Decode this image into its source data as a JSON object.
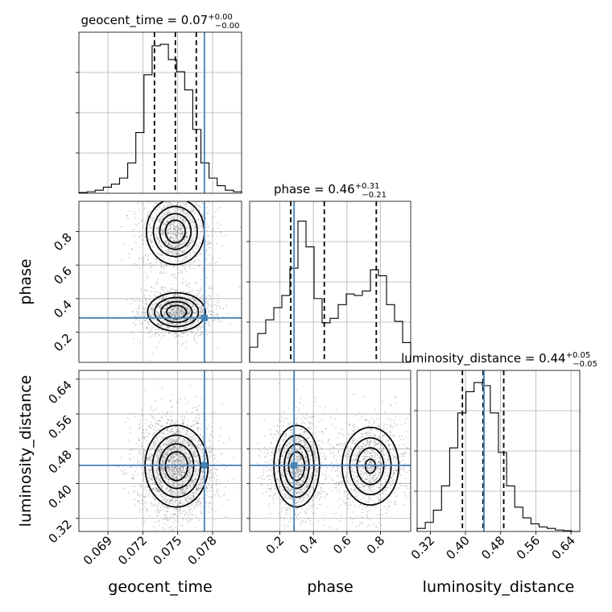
{
  "chart_data": {
    "type": "corner",
    "grid": true,
    "colors": {
      "truth": "#4682b4",
      "hist": "#000000",
      "quantile": "#000000",
      "density": "#000000"
    },
    "parameters": [
      {
        "key": "geocent_time",
        "label": "geocent_time",
        "title": {
          "main": "geocent_time = 0.07",
          "sup": "+0.00",
          "sub": "−0.00"
        },
        "range": [
          0.0665,
          0.0805
        ],
        "ticks": [
          0.069,
          0.072,
          0.075,
          0.078
        ],
        "tick_labels": [
          "0.069",
          "0.072",
          "0.075",
          "0.078"
        ],
        "truth": 0.0773,
        "quantiles": [
          0.073,
          0.0748,
          0.0766
        ],
        "histogram": [
          0.005,
          0.01,
          0.02,
          0.04,
          0.06,
          0.1,
          0.2,
          0.4,
          0.78,
          0.97,
          0.98,
          0.88,
          0.8,
          0.68,
          0.42,
          0.2,
          0.1,
          0.05,
          0.02,
          0.01
        ]
      },
      {
        "key": "phase",
        "label": "phase",
        "title": {
          "main": "phase = 0.46",
          "sup": "+0.31",
          "sub": "−0.21"
        },
        "range": [
          0.02,
          0.98
        ],
        "ticks": [
          0.2,
          0.4,
          0.6,
          0.8
        ],
        "tick_labels": [
          "0.2",
          "0.4",
          "0.6",
          "0.8"
        ],
        "truth": 0.285,
        "quantiles": [
          0.265,
          0.465,
          0.775
        ],
        "histogram": [
          0.1,
          0.19,
          0.28,
          0.36,
          0.44,
          0.62,
          0.93,
          0.76,
          0.42,
          0.26,
          0.29,
          0.38,
          0.45,
          0.44,
          0.47,
          0.61,
          0.57,
          0.38,
          0.27,
          0.13
        ]
      },
      {
        "key": "luminosity_distance",
        "label": "luminosity_distance",
        "title": {
          "main": "luminosity_distance = 0.44",
          "sup": "+0.05",
          "sub": "−0.05"
        },
        "range": [
          0.29,
          0.66
        ],
        "ticks": [
          0.32,
          0.4,
          0.48,
          0.56,
          0.64
        ],
        "tick_labels": [
          "0.32",
          "0.40",
          "0.48",
          "0.56",
          "0.64"
        ],
        "truth": 0.442,
        "quantiles": [
          0.393,
          0.44,
          0.487
        ],
        "histogram": [
          0.02,
          0.06,
          0.14,
          0.3,
          0.55,
          0.78,
          0.92,
          0.98,
          0.96,
          0.78,
          0.52,
          0.3,
          0.16,
          0.09,
          0.05,
          0.03,
          0.02,
          0.01,
          0.005,
          0.0
        ]
      }
    ],
    "pairs": [
      {
        "x": "geocent_time",
        "y": "phase",
        "modes": [
          {
            "cx": 0.0748,
            "cy": 0.8,
            "sx": 0.0012,
            "sy": 0.095,
            "w": 0.5
          },
          {
            "cx": 0.0749,
            "cy": 0.32,
            "sx": 0.0012,
            "sy": 0.055,
            "w": 0.5
          }
        ]
      },
      {
        "x": "geocent_time",
        "y": "luminosity_distance",
        "modes": [
          {
            "cx": 0.0749,
            "cy": 0.44,
            "sx": 0.0013,
            "sy": 0.045,
            "w": 1.0
          }
        ]
      },
      {
        "x": "phase",
        "y": "luminosity_distance",
        "modes": [
          {
            "cx": 0.3,
            "cy": 0.44,
            "sx": 0.065,
            "sy": 0.045,
            "w": 0.55
          },
          {
            "cx": 0.74,
            "cy": 0.44,
            "sx": 0.085,
            "sy": 0.045,
            "w": 0.45
          }
        ]
      }
    ]
  }
}
